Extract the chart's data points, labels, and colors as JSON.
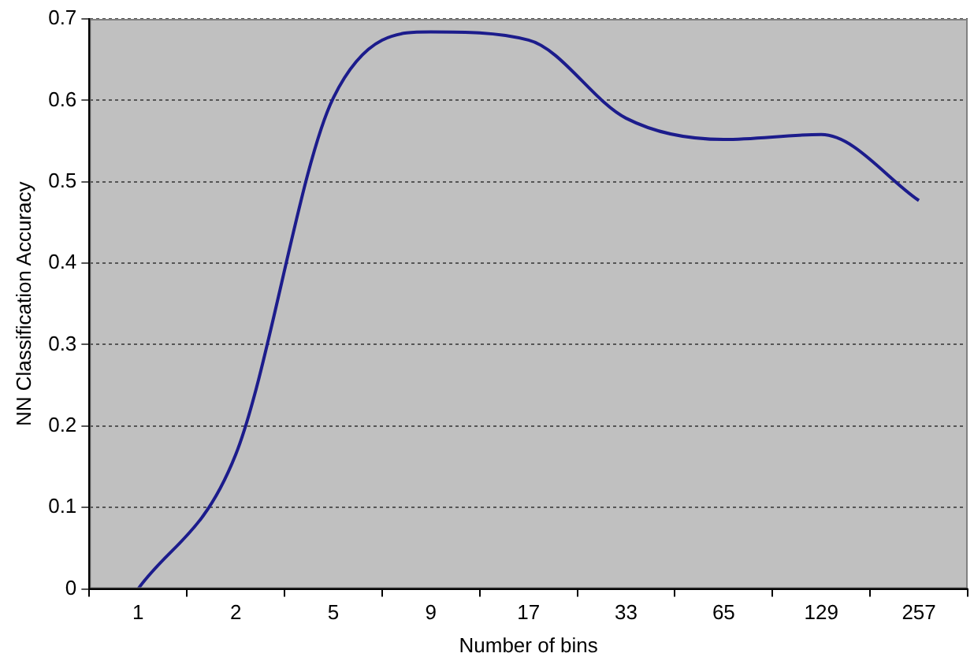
{
  "chart_data": {
    "type": "line",
    "xlabel": "Number of bins",
    "ylabel": "NN Classification Accuracy",
    "categories": [
      "1",
      "2",
      "5",
      "9",
      "17",
      "33",
      "65",
      "129",
      "257"
    ],
    "series": [
      {
        "color": "#1c1c8c",
        "values": [
          0,
          0.165,
          0.603,
          0.684,
          0.674,
          0.578,
          0.552,
          0.558,
          0.477
        ]
      }
    ],
    "ylim": [
      0,
      0.7
    ],
    "yticks": [
      0,
      0.1,
      0.2,
      0.3,
      0.4,
      0.5,
      0.6,
      0.7
    ],
    "grid": "y",
    "legend": false,
    "marker": "none",
    "line_style": "solid"
  }
}
